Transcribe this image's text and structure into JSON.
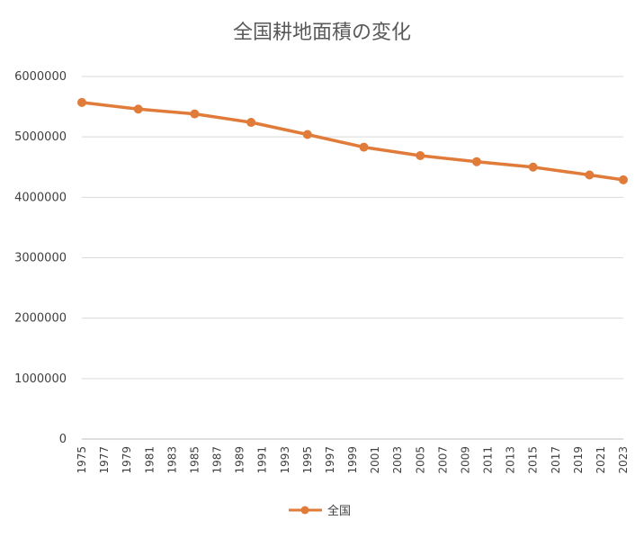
{
  "chart_data": {
    "type": "line",
    "title": "全国耕地面積の変化",
    "xlabel": "",
    "ylabel": "",
    "x_ticks": [
      "1975",
      "1977",
      "1979",
      "1981",
      "1983",
      "1985",
      "1987",
      "1989",
      "1991",
      "1993",
      "1995",
      "1997",
      "1999",
      "2001",
      "2003",
      "2005",
      "2007",
      "2009",
      "2011",
      "2013",
      "2015",
      "2017",
      "2019",
      "2021",
      "2023"
    ],
    "y_ticks": [
      "0",
      "1000000",
      "2000000",
      "3000000",
      "4000000",
      "5000000",
      "6000000"
    ],
    "ylim": [
      0,
      6000000
    ],
    "xlim": [
      1975,
      2023
    ],
    "grid": true,
    "legend_position": "bottom",
    "series": [
      {
        "name": "全国",
        "color": "#E07B39",
        "x": [
          1975,
          1980,
          1985,
          1990,
          1995,
          2000,
          2005,
          2010,
          2015,
          2020,
          2023
        ],
        "values": [
          5570000,
          5460000,
          5380000,
          5240000,
          5040000,
          4830000,
          4690000,
          4590000,
          4500000,
          4370000,
          4290000
        ]
      }
    ]
  }
}
